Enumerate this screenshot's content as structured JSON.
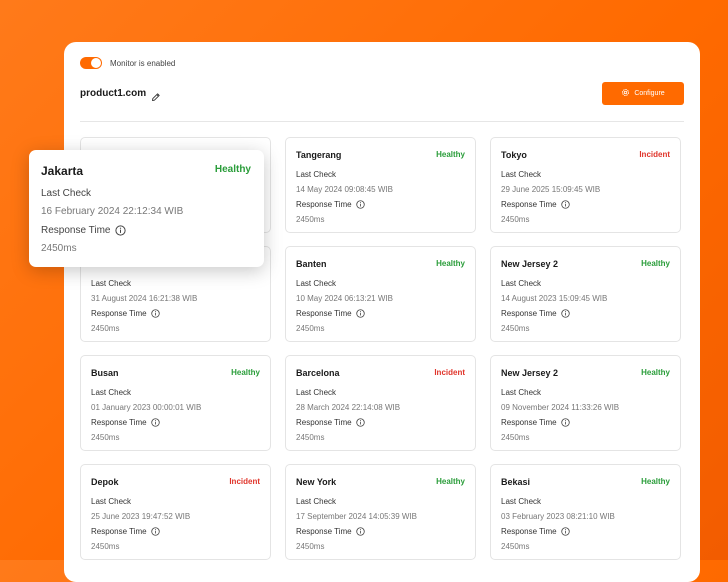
{
  "header": {
    "toggle_label": "Monitor is enabled",
    "site_name": "product1.com",
    "configure_label": "Configure"
  },
  "labels": {
    "last_check": "Last Check",
    "response_time": "Response Time"
  },
  "colors": {
    "accent": "#ff6a00",
    "healthy": "#2a9d3a",
    "incident": "#e0352b"
  },
  "popup": {
    "name": "Jakarta",
    "status": "Healthy",
    "last_check": "16 February 2024 22:12:34 WIB",
    "response_time": "2450ms"
  },
  "cards": [
    {
      "name": "",
      "status": "",
      "last_check": "",
      "response_time": ""
    },
    {
      "name": "Tangerang",
      "status": "Healthy",
      "last_check": "14 May 2024 09:08:45 WIB",
      "response_time": "2450ms"
    },
    {
      "name": "Tokyo",
      "status": "Incident",
      "last_check": "29 June 2025 15:09:45 WIB",
      "response_time": "2450ms"
    },
    {
      "name": "",
      "status": "",
      "last_check": "31 August 2024 16:21:38 WIB",
      "response_time": "2450ms"
    },
    {
      "name": "Banten",
      "status": "Healthy",
      "last_check": "10 May 2024 06:13:21 WIB",
      "response_time": "2450ms"
    },
    {
      "name": "New Jersey 2",
      "status": "Healthy",
      "last_check": "14 August 2023 15:09:45 WIB",
      "response_time": "2450ms"
    },
    {
      "name": "Busan",
      "status": "Healthy",
      "last_check": "01 January 2023 00:00:01 WIB",
      "response_time": "2450ms"
    },
    {
      "name": "Barcelona",
      "status": "Incident",
      "last_check": "28 March 2024 22:14:08 WIB",
      "response_time": "2450ms"
    },
    {
      "name": "New Jersey 2",
      "status": "Healthy",
      "last_check": "09 November 2024 11:33:26 WIB",
      "response_time": "2450ms"
    },
    {
      "name": "Depok",
      "status": "Incident",
      "last_check": "25 June 2023 19:47:52 WIB",
      "response_time": "2450ms"
    },
    {
      "name": "New York",
      "status": "Healthy",
      "last_check": "17 September 2024 14:05:39 WIB",
      "response_time": "2450ms"
    },
    {
      "name": "Bekasi",
      "status": "Healthy",
      "last_check": "03 February 2023 08:21:10 WIB",
      "response_time": "2450ms"
    }
  ]
}
